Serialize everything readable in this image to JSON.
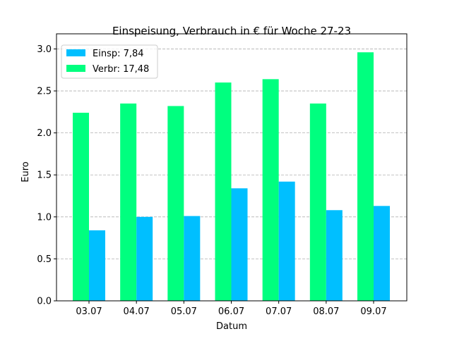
{
  "chart_data": {
    "type": "bar",
    "title": "Einspeisung, Verbrauch in € für Woche 27-23",
    "xlabel": "Datum",
    "ylabel": "Euro",
    "categories": [
      "03.07",
      "04.07",
      "05.07",
      "06.07",
      "07.07",
      "08.07",
      "09.07"
    ],
    "series": [
      {
        "name": "Verbr: 17,48",
        "color": "#00ff7f",
        "values": [
          2.24,
          2.35,
          2.32,
          2.6,
          2.64,
          2.35,
          2.96
        ]
      },
      {
        "name": "Einsp: 7,84",
        "color": "#00bfff",
        "values": [
          0.84,
          1.0,
          1.01,
          1.34,
          1.42,
          1.08,
          1.13
        ]
      }
    ],
    "legend_order": [
      1,
      0
    ],
    "legend_position": "top-left",
    "ylim": [
      0,
      3.18
    ],
    "yticks": [
      0,
      0.5,
      1.0,
      1.5,
      2.0,
      2.5,
      3.0
    ],
    "ytick_labels": [
      "0.0",
      "0.5",
      "1.0",
      "1.5",
      "2.0",
      "2.5",
      "3.0"
    ],
    "grid": "y dashed"
  }
}
